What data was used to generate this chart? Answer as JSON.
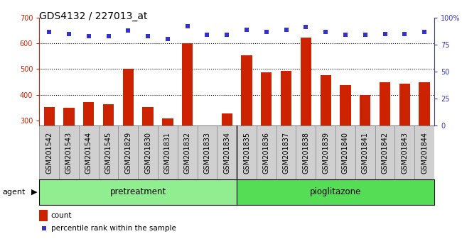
{
  "title": "GDS4132 / 227013_at",
  "categories": [
    "GSM201542",
    "GSM201543",
    "GSM201544",
    "GSM201545",
    "GSM201829",
    "GSM201830",
    "GSM201831",
    "GSM201832",
    "GSM201833",
    "GSM201834",
    "GSM201835",
    "GSM201836",
    "GSM201837",
    "GSM201838",
    "GSM201839",
    "GSM201840",
    "GSM201841",
    "GSM201842",
    "GSM201843",
    "GSM201844"
  ],
  "bar_values": [
    352,
    350,
    370,
    362,
    502,
    352,
    308,
    600,
    280,
    328,
    554,
    488,
    492,
    622,
    475,
    437,
    400,
    447,
    443,
    448
  ],
  "dot_values": [
    87,
    85,
    83,
    83,
    88,
    83,
    80,
    92,
    84,
    84,
    89,
    87,
    89,
    91,
    87,
    84,
    84,
    85,
    85,
    87
  ],
  "pretreatment_label": "pretreatment",
  "pioglitazone_label": "pioglitazone",
  "bar_color": "#cc2200",
  "dot_color": "#3333cc",
  "bar_bottom": 280,
  "ylim_left": [
    280,
    700
  ],
  "ylim_right": [
    0,
    100
  ],
  "yticks_left": [
    300,
    400,
    500,
    600,
    700
  ],
  "yticks_right": [
    0,
    25,
    50,
    75,
    100
  ],
  "ytick_right_labels": [
    "0",
    "25",
    "50",
    "75",
    "100%"
  ],
  "gridlines": [
    400,
    500,
    600
  ],
  "legend_count": "count",
  "legend_pct": "percentile rank within the sample",
  "cell_bg": "#d0d0d0",
  "plot_bg": "#ffffff",
  "green1": "#90ee90",
  "green2": "#55dd55",
  "agent_label": "agent",
  "title_fontsize": 10,
  "tick_fontsize": 7,
  "n_pretreatment": 10,
  "n_pioglitazone": 10
}
